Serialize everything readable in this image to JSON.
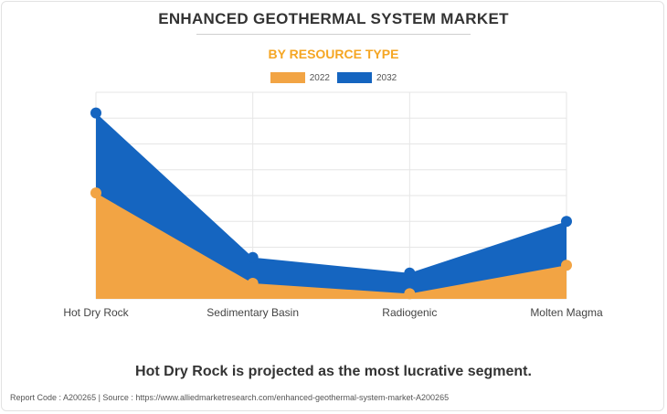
{
  "title": "ENHANCED GEOTHERMAL SYSTEM MARKET",
  "subtitle": "BY RESOURCE TYPE",
  "colors": {
    "accent": "#f5a623",
    "series_2022": "#f2a444",
    "series_2032": "#1565c0",
    "grid": "#e6e6e6",
    "tick": "#444444"
  },
  "chart_data": {
    "type": "area",
    "categories": [
      "Hot Dry Rock",
      "Sedimentary Basin",
      "Radiogenic",
      "Molten Magma"
    ],
    "series": [
      {
        "name": "2022",
        "values": [
          4.1,
          0.6,
          0.2,
          1.3
        ]
      },
      {
        "name": "2032",
        "values": [
          7.2,
          1.6,
          1.0,
          3.0
        ]
      }
    ],
    "xlabel": "",
    "ylabel": "",
    "ylim": [
      0,
      8
    ],
    "grid": true,
    "legend": "top-center",
    "stacked": false
  },
  "caption": "Hot Dry Rock is projected as the most lucrative segment.",
  "footer": "Report Code : A200265  |  Source : https://www.alliedmarketresearch.com/enhanced-geothermal-system-market-A200265"
}
